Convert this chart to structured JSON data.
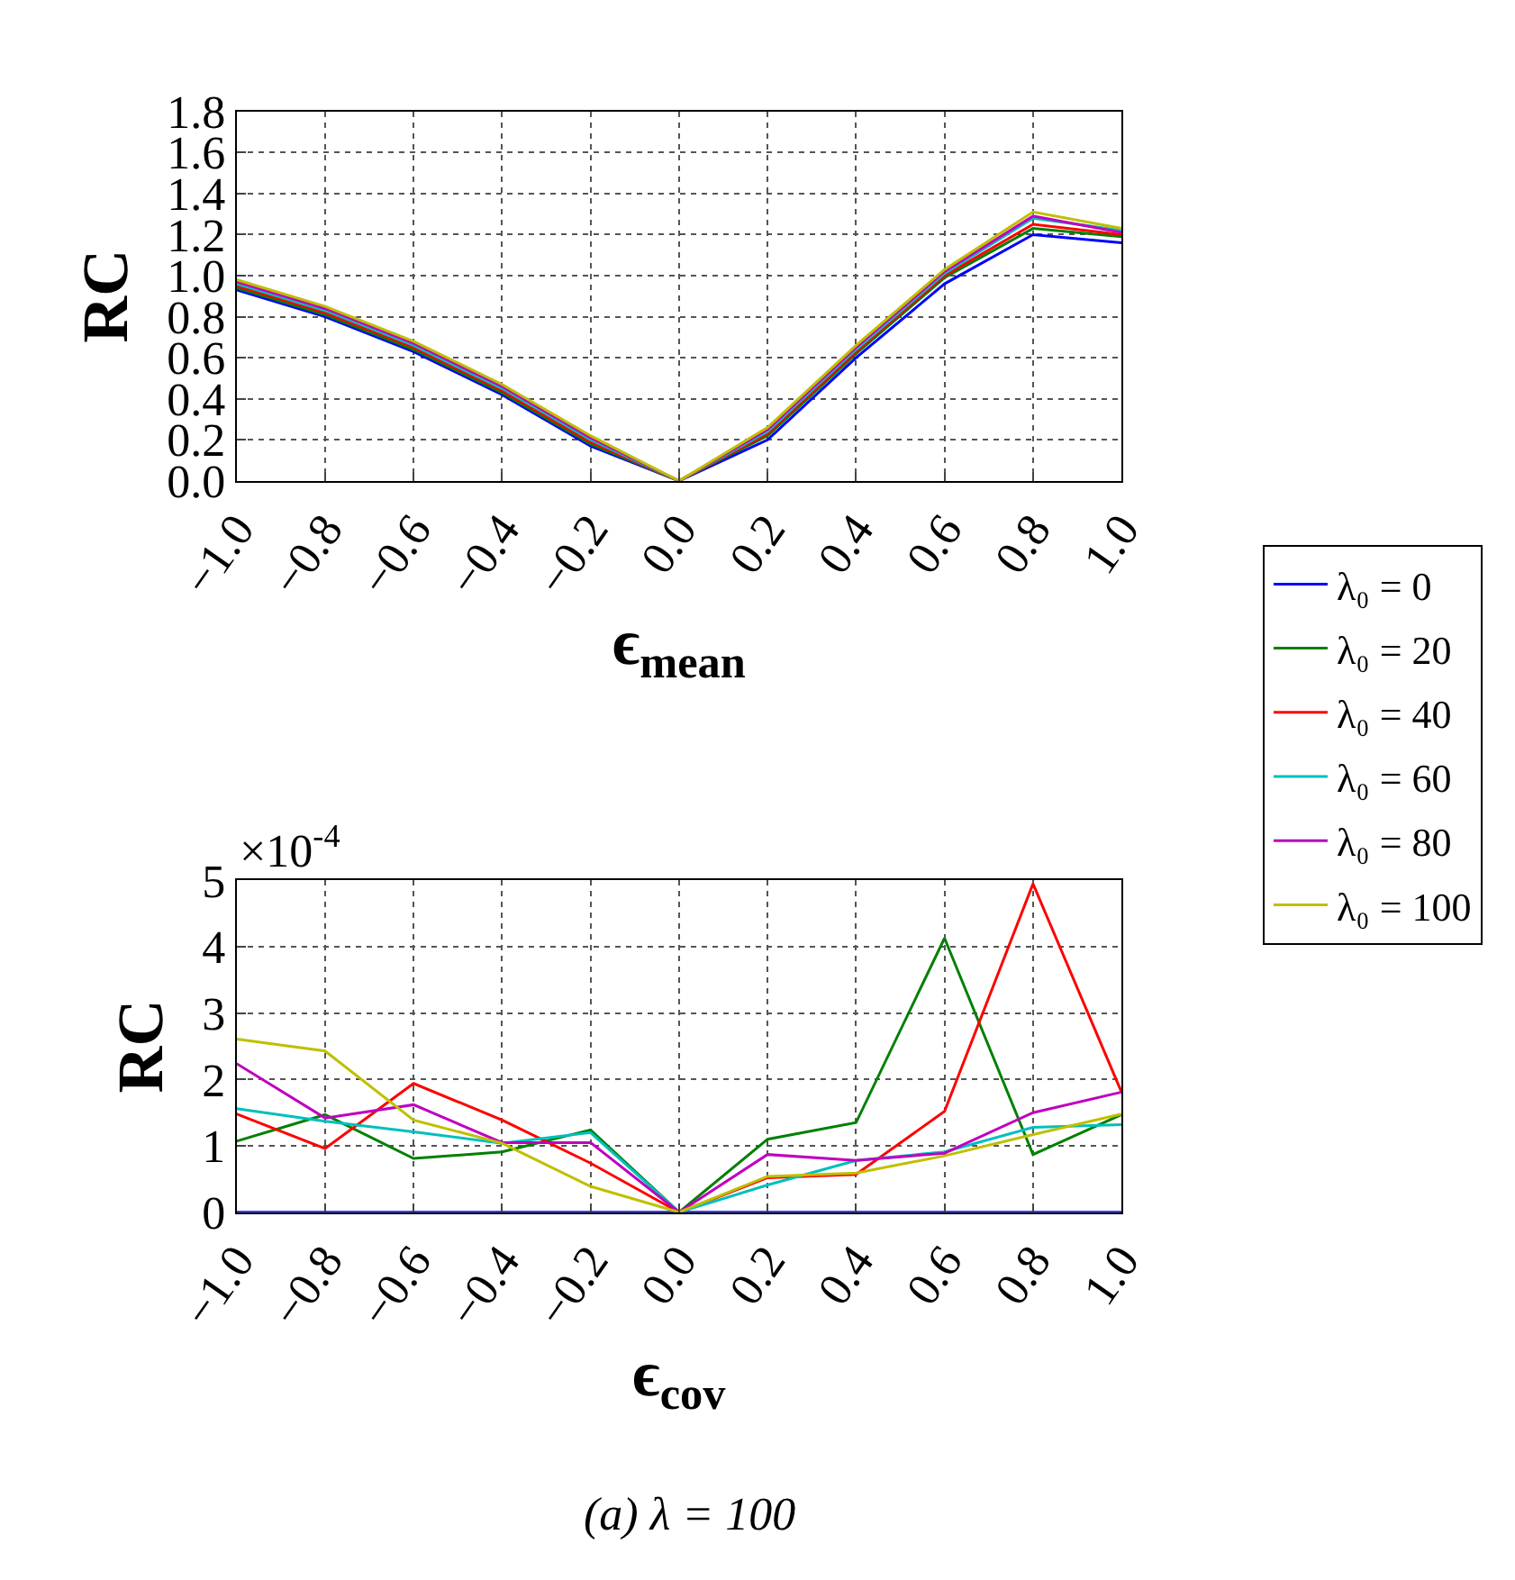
{
  "chart_data": [
    {
      "type": "line",
      "ylabel": "RC",
      "xlabel": "ϵ$_{mean}$",
      "x": [
        -1.0,
        -0.8,
        -0.6,
        -0.4,
        -0.2,
        0.0,
        0.2,
        0.4,
        0.6,
        0.8,
        1.0
      ],
      "xlim": [
        -1.0,
        1.0
      ],
      "ylim": [
        0,
        1.8
      ],
      "xticks": [
        {
          "value": -1.0,
          "label": "−1.0"
        },
        {
          "value": -0.8,
          "label": "−0.8"
        },
        {
          "value": -0.6,
          "label": "−0.6"
        },
        {
          "value": -0.4,
          "label": "−0.4"
        },
        {
          "value": -0.2,
          "label": "−0.2"
        },
        {
          "value": 0.0,
          "label": "0.0"
        },
        {
          "value": 0.2,
          "label": "0.2"
        },
        {
          "value": 0.4,
          "label": "0.4"
        },
        {
          "value": 0.6,
          "label": "0.6"
        },
        {
          "value": 0.8,
          "label": "0.8"
        },
        {
          "value": 1.0,
          "label": "1.0"
        }
      ],
      "yticks": [
        {
          "value": 0,
          "label": "0.0"
        },
        {
          "value": 0.2,
          "label": "0.2"
        },
        {
          "value": 0.4,
          "label": "0.4"
        },
        {
          "value": 0.6,
          "label": "0.6"
        },
        {
          "value": 0.8,
          "label": "0.8"
        },
        {
          "value": 1.0,
          "label": "1.0"
        },
        {
          "value": 1.2,
          "label": "1.2"
        },
        {
          "value": 1.4,
          "label": "1.4"
        },
        {
          "value": 1.6,
          "label": "1.6"
        },
        {
          "value": 1.8,
          "label": "1.8"
        }
      ],
      "grid": true,
      "legend": "right",
      "series": [
        {
          "name": "λ₀ = 0",
          "color": "#0000ff",
          "values": [
            0.93,
            0.8,
            0.63,
            0.42,
            0.17,
            0,
            0.2,
            0.6,
            0.96,
            1.2,
            1.16
          ]
        },
        {
          "name": "λ₀ = 20",
          "color": "#008000",
          "values": [
            0.94,
            0.81,
            0.64,
            0.43,
            0.18,
            0,
            0.22,
            0.62,
            0.99,
            1.23,
            1.19
          ]
        },
        {
          "name": "λ₀ = 40",
          "color": "#ff0000",
          "values": [
            0.95,
            0.82,
            0.65,
            0.44,
            0.19,
            0,
            0.23,
            0.63,
            1.0,
            1.25,
            1.2
          ]
        },
        {
          "name": "λ₀ = 60",
          "color": "#00bfbf",
          "values": [
            0.96,
            0.83,
            0.66,
            0.45,
            0.2,
            0,
            0.24,
            0.64,
            1.01,
            1.28,
            1.22
          ]
        },
        {
          "name": "λ₀ = 80",
          "color": "#bf00bf",
          "values": [
            0.97,
            0.84,
            0.67,
            0.46,
            0.21,
            0,
            0.25,
            0.65,
            1.02,
            1.29,
            1.21
          ]
        },
        {
          "name": "λ₀ = 100",
          "color": "#bfbf00",
          "values": [
            0.98,
            0.85,
            0.68,
            0.47,
            0.22,
            0,
            0.26,
            0.66,
            1.03,
            1.31,
            1.23
          ]
        }
      ]
    },
    {
      "type": "line",
      "ylabel": "RC",
      "xlabel": "ϵ$_{cov}$",
      "annotations": [
        "×10$^{-4}$",
        "(a) λ = 100"
      ],
      "x": [
        -1.0,
        -0.8,
        -0.6,
        -0.4,
        -0.2,
        0.0,
        0.2,
        0.4,
        0.6,
        0.8,
        1.0
      ],
      "xlim": [
        -1.0,
        1.0
      ],
      "ylim": [
        0,
        5
      ],
      "xticks": [
        {
          "value": -1.0,
          "label": "−1.0"
        },
        {
          "value": -0.8,
          "label": "−0.8"
        },
        {
          "value": -0.6,
          "label": "−0.6"
        },
        {
          "value": -0.4,
          "label": "−0.4"
        },
        {
          "value": -0.2,
          "label": "−0.2"
        },
        {
          "value": 0.0,
          "label": "0.0"
        },
        {
          "value": 0.2,
          "label": "0.2"
        },
        {
          "value": 0.4,
          "label": "0.4"
        },
        {
          "value": 0.6,
          "label": "0.6"
        },
        {
          "value": 0.8,
          "label": "0.8"
        },
        {
          "value": 1.0,
          "label": "1.0"
        }
      ],
      "yticks": [
        0,
        1,
        2,
        3,
        4,
        5
      ],
      "grid": true,
      "series": [
        {
          "color": "#0000ff",
          "values": [
            0,
            0,
            0,
            0,
            0,
            0,
            0,
            0,
            0,
            0,
            0
          ]
        },
        {
          "color": "#008000",
          "values": [
            1.07,
            1.47,
            0.81,
            0.91,
            1.24,
            0,
            1.1,
            1.35,
            4.13,
            0.87,
            1.47
          ]
        },
        {
          "color": "#ff0000",
          "values": [
            1.48,
            0.96,
            1.94,
            1.39,
            0.74,
            0,
            0.52,
            0.57,
            1.52,
            4.95,
            1.81
          ]
        },
        {
          "color": "#00bfbf",
          "values": [
            1.56,
            1.37,
            1.21,
            1.04,
            1.2,
            0,
            0.41,
            0.78,
            0.91,
            1.28,
            1.32
          ]
        },
        {
          "color": "#bf00bf",
          "values": [
            2.24,
            1.42,
            1.62,
            1.05,
            1.05,
            0,
            0.87,
            0.78,
            0.89,
            1.5,
            1.81
          ]
        },
        {
          "color": "#bfbf00",
          "values": [
            2.61,
            2.43,
            1.39,
            1.04,
            0.39,
            0,
            0.54,
            0.59,
            0.85,
            1.17,
            1.48
          ]
        }
      ]
    }
  ]
}
